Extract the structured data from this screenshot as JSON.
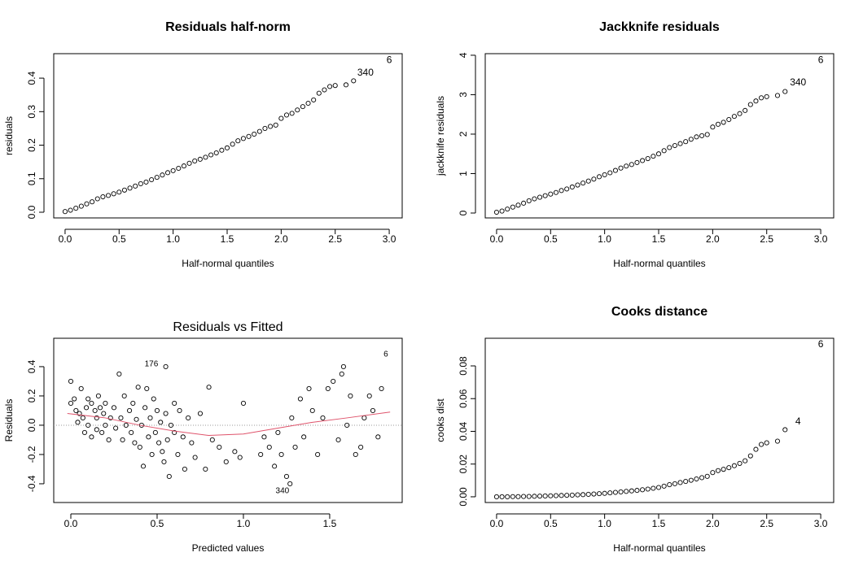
{
  "chart_data": [
    {
      "type": "scatter",
      "title": "Residuals half-norm",
      "xlabel": "Half-normal quantiles",
      "ylabel": "residuals",
      "xlim": [
        -0.105,
        3.12
      ],
      "ylim": [
        -0.017,
        0.473
      ],
      "xticks": [
        {
          "value": 0,
          "label": "0.0"
        },
        0.5,
        {
          "value": 1,
          "label": "1.0"
        },
        1.5,
        {
          "value": 2,
          "label": "2.0"
        },
        2.5,
        {
          "value": 3,
          "label": "3.0"
        }
      ],
      "yticks": [
        {
          "value": 0,
          "label": "0.0"
        },
        0.1,
        0.2,
        0.3,
        0.4
      ],
      "color": "#000000",
      "x": [
        0.0,
        0.05,
        0.1,
        0.15,
        0.2,
        0.25,
        0.3,
        0.35,
        0.4,
        0.45,
        0.5,
        0.55,
        0.6,
        0.65,
        0.7,
        0.75,
        0.8,
        0.85,
        0.9,
        0.95,
        1.0,
        1.05,
        1.1,
        1.15,
        1.2,
        1.25,
        1.3,
        1.35,
        1.4,
        1.45,
        1.5,
        1.55,
        1.6,
        1.65,
        1.7,
        1.75,
        1.8,
        1.85,
        1.9,
        1.95,
        2.0,
        2.05,
        2.1,
        2.15,
        2.2,
        2.25,
        2.3,
        2.35,
        2.4,
        2.45,
        2.5,
        2.6,
        2.67
      ],
      "values": [
        0.002,
        0.006,
        0.012,
        0.018,
        0.025,
        0.031,
        0.04,
        0.046,
        0.05,
        0.055,
        0.06,
        0.066,
        0.072,
        0.078,
        0.085,
        0.09,
        0.097,
        0.104,
        0.111,
        0.118,
        0.124,
        0.131,
        0.138,
        0.146,
        0.153,
        0.158,
        0.164,
        0.171,
        0.177,
        0.185,
        0.192,
        0.203,
        0.213,
        0.22,
        0.226,
        0.233,
        0.241,
        0.25,
        0.256,
        0.26,
        0.28,
        0.29,
        0.295,
        0.305,
        0.315,
        0.325,
        0.335,
        0.355,
        0.365,
        0.375,
        0.378,
        0.38,
        0.392
      ],
      "annotations": [
        {
          "text": "6",
          "x": 3.0,
          "y": 0.453
        },
        {
          "text": "340",
          "x": 2.78,
          "y": 0.415
        }
      ]
    },
    {
      "type": "scatter",
      "title": "Jackknife residuals",
      "xlabel": "Half-normal quantiles",
      "ylabel": "jackknife residuals",
      "xlim": [
        -0.105,
        3.12
      ],
      "ylim": [
        -0.124,
        4.04
      ],
      "xticks": [
        {
          "value": 0,
          "label": "0.0"
        },
        0.5,
        {
          "value": 1,
          "label": "1.0"
        },
        1.5,
        {
          "value": 2,
          "label": "2.0"
        },
        2.5,
        {
          "value": 3,
          "label": "3.0"
        }
      ],
      "yticks": [
        0,
        1,
        2,
        3,
        4
      ],
      "color": "#000000",
      "x": [
        0.0,
        0.05,
        0.1,
        0.15,
        0.2,
        0.25,
        0.3,
        0.35,
        0.4,
        0.45,
        0.5,
        0.55,
        0.6,
        0.65,
        0.7,
        0.75,
        0.8,
        0.85,
        0.9,
        0.95,
        1.0,
        1.05,
        1.1,
        1.15,
        1.2,
        1.25,
        1.3,
        1.35,
        1.4,
        1.45,
        1.5,
        1.55,
        1.6,
        1.65,
        1.7,
        1.75,
        1.8,
        1.85,
        1.9,
        1.95,
        2.0,
        2.05,
        2.1,
        2.15,
        2.2,
        2.25,
        2.3,
        2.35,
        2.4,
        2.45,
        2.5,
        2.6,
        2.67
      ],
      "values": [
        0.02,
        0.05,
        0.1,
        0.15,
        0.2,
        0.25,
        0.31,
        0.36,
        0.4,
        0.44,
        0.48,
        0.52,
        0.57,
        0.61,
        0.66,
        0.71,
        0.76,
        0.81,
        0.86,
        0.92,
        0.97,
        1.02,
        1.08,
        1.14,
        1.19,
        1.23,
        1.28,
        1.33,
        1.38,
        1.44,
        1.5,
        1.58,
        1.66,
        1.71,
        1.76,
        1.81,
        1.87,
        1.93,
        1.96,
        1.99,
        2.18,
        2.25,
        2.3,
        2.37,
        2.45,
        2.52,
        2.6,
        2.75,
        2.84,
        2.92,
        2.95,
        2.98,
        3.08
      ],
      "annotations": [
        {
          "text": "6",
          "x": 3.0,
          "y": 3.87
        },
        {
          "text": "340",
          "x": 2.79,
          "y": 3.3
        }
      ]
    },
    {
      "type": "scatter",
      "title": "Residuals vs Fitted",
      "xlabel": "Predicted values",
      "ylabel": "Residuals",
      "xlim": [
        -0.099,
        1.92
      ],
      "ylim": [
        -0.528,
        0.594
      ],
      "xticks": [
        {
          "value": 0,
          "label": "0.0"
        },
        0.5,
        {
          "value": 1,
          "label": "1.0"
        },
        1.5
      ],
      "yticks": [
        -0.4,
        -0.2,
        {
          "value": 0,
          "label": "0.0"
        },
        0.2,
        0.4
      ],
      "color": "#000000",
      "hline": 0,
      "x": [
        0.0,
        0.0,
        0.02,
        0.03,
        0.04,
        0.05,
        0.06,
        0.07,
        0.08,
        0.09,
        0.1,
        0.1,
        0.12,
        0.12,
        0.14,
        0.15,
        0.15,
        0.16,
        0.17,
        0.18,
        0.19,
        0.2,
        0.2,
        0.22,
        0.23,
        0.25,
        0.26,
        0.28,
        0.29,
        0.3,
        0.31,
        0.32,
        0.34,
        0.35,
        0.36,
        0.37,
        0.38,
        0.39,
        0.4,
        0.41,
        0.42,
        0.43,
        0.44,
        0.45,
        0.46,
        0.47,
        0.48,
        0.49,
        0.5,
        0.51,
        0.52,
        0.53,
        0.54,
        0.55,
        0.55,
        0.56,
        0.57,
        0.58,
        0.6,
        0.6,
        0.62,
        0.63,
        0.65,
        0.66,
        0.68,
        0.7,
        0.72,
        0.75,
        0.78,
        0.8,
        0.82,
        0.86,
        0.9,
        0.95,
        0.98,
        1.0,
        1.1,
        1.12,
        1.15,
        1.18,
        1.2,
        1.22,
        1.25,
        1.27,
        1.28,
        1.3,
        1.33,
        1.35,
        1.38,
        1.4,
        1.43,
        1.46,
        1.49,
        1.52,
        1.55,
        1.57,
        1.58,
        1.6,
        1.62,
        1.65,
        1.68,
        1.7,
        1.73,
        1.75,
        1.78,
        1.8
      ],
      "values": [
        0.15,
        0.3,
        0.18,
        0.1,
        0.02,
        0.08,
        0.25,
        0.05,
        -0.05,
        0.12,
        0.18,
        0.0,
        0.15,
        -0.08,
        0.1,
        0.05,
        -0.03,
        0.2,
        0.12,
        -0.05,
        0.08,
        0.0,
        0.15,
        -0.1,
        0.05,
        0.12,
        -0.02,
        0.35,
        0.05,
        -0.1,
        0.2,
        0.0,
        0.1,
        -0.05,
        0.15,
        -0.12,
        0.04,
        0.26,
        -0.15,
        0.0,
        -0.28,
        0.12,
        0.25,
        -0.08,
        0.05,
        -0.2,
        0.18,
        -0.05,
        0.1,
        -0.12,
        0.02,
        -0.18,
        -0.25,
        0.4,
        0.08,
        -0.1,
        -0.35,
        0.0,
        0.15,
        -0.05,
        -0.2,
        0.1,
        -0.08,
        -0.3,
        0.05,
        -0.12,
        -0.22,
        0.08,
        -0.3,
        0.26,
        -0.1,
        -0.15,
        -0.25,
        -0.18,
        -0.22,
        0.15,
        -0.2,
        -0.08,
        -0.15,
        -0.28,
        -0.05,
        -0.2,
        -0.35,
        -0.4,
        0.05,
        -0.15,
        0.18,
        -0.08,
        0.25,
        0.1,
        -0.2,
        0.05,
        0.25,
        0.3,
        -0.1,
        0.35,
        0.4,
        0.0,
        0.2,
        -0.2,
        -0.15,
        0.05,
        0.2,
        0.1,
        -0.08,
        0.25
      ],
      "fitted_line": {
        "color": "#df536b",
        "x": [
          -0.02,
          0.2,
          0.4,
          0.6,
          0.8,
          1.0,
          1.2,
          1.4,
          1.6,
          1.85
        ],
        "y": [
          0.08,
          0.05,
          0.0,
          -0.04,
          -0.07,
          -0.06,
          -0.02,
          0.02,
          0.05,
          0.09
        ]
      },
      "annotations": [
        {
          "text": "176",
          "x": 0.467,
          "y": 0.417
        },
        {
          "text": "6",
          "x": 1.825,
          "y": 0.483
        },
        {
          "text": "340",
          "x": 1.226,
          "y": -0.45
        }
      ]
    },
    {
      "type": "scatter",
      "title": "Cooks distance",
      "xlabel": "Half-normal quantiles",
      "ylabel": "cooks dist",
      "xlim": [
        -0.105,
        3.12
      ],
      "ylim": [
        -0.0035,
        0.0969
      ],
      "xticks": [
        {
          "value": 0,
          "label": "0.0"
        },
        0.5,
        {
          "value": 1,
          "label": "1.0"
        },
        1.5,
        {
          "value": 2,
          "label": "2.0"
        },
        2.5,
        {
          "value": 3,
          "label": "3.0"
        }
      ],
      "yticks": [
        {
          "value": 0,
          "label": "0.00"
        },
        0.02,
        0.04,
        0.06,
        0.08
      ],
      "color": "#000000",
      "x": [
        0.0,
        0.05,
        0.1,
        0.15,
        0.2,
        0.25,
        0.3,
        0.35,
        0.4,
        0.45,
        0.5,
        0.55,
        0.6,
        0.65,
        0.7,
        0.75,
        0.8,
        0.85,
        0.9,
        0.95,
        1.0,
        1.05,
        1.1,
        1.15,
        1.2,
        1.25,
        1.3,
        1.35,
        1.4,
        1.45,
        1.5,
        1.55,
        1.6,
        1.65,
        1.7,
        1.75,
        1.8,
        1.85,
        1.9,
        1.95,
        2.0,
        2.05,
        2.1,
        2.15,
        2.2,
        2.25,
        2.3,
        2.35,
        2.4,
        2.45,
        2.5,
        2.6,
        2.67
      ],
      "values": [
        0,
        0,
        0,
        0.0001,
        0.0001,
        0.0002,
        0.0002,
        0.0003,
        0.0004,
        0.0005,
        0.0006,
        0.0007,
        0.0008,
        0.0009,
        0.001,
        0.0012,
        0.0013,
        0.0015,
        0.0017,
        0.0019,
        0.0021,
        0.0024,
        0.0027,
        0.003,
        0.0033,
        0.0036,
        0.0039,
        0.0043,
        0.0047,
        0.0052,
        0.0057,
        0.0065,
        0.0074,
        0.008,
        0.0087,
        0.0094,
        0.0101,
        0.0109,
        0.0117,
        0.0125,
        0.0148,
        0.016,
        0.0168,
        0.0178,
        0.019,
        0.0204,
        0.022,
        0.025,
        0.029,
        0.032,
        0.033,
        0.034,
        0.041
      ],
      "annotations": [
        {
          "text": "6",
          "x": 3.0,
          "y": 0.093
        },
        {
          "text": "4",
          "x": 2.79,
          "y": 0.0457
        }
      ]
    }
  ]
}
